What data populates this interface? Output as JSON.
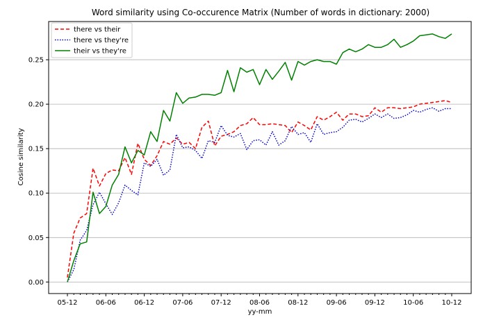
{
  "chart_data": {
    "type": "line",
    "title": "Word similarity using Co-occurence Matrix (Number of words in dictionary: 2000)",
    "xlabel": "yy-mm",
    "ylabel": "Cosine similarity",
    "ylim": [
      -0.013,
      0.293
    ],
    "y_ticks": [
      "0.00",
      "0.05",
      "0.10",
      "0.15",
      "0.20",
      "0.25"
    ],
    "y_tick_values": [
      0.0,
      0.05,
      0.1,
      0.15,
      0.2,
      0.25
    ],
    "x_ticks": [
      "05-12",
      "06-06",
      "06-12",
      "07-06",
      "07-12",
      "08-06",
      "08-12",
      "09-06",
      "09-12",
      "10-06",
      "10-12"
    ],
    "grid": "horizontal",
    "legend_position": "top-left",
    "series": [
      {
        "name": "there vs their",
        "color": "#ff0000",
        "style": "dashed",
        "values": [
          0.005,
          0.055,
          0.072,
          0.077,
          0.128,
          0.108,
          0.122,
          0.126,
          0.125,
          0.14,
          0.121,
          0.156,
          0.138,
          0.131,
          0.142,
          0.158,
          0.155,
          0.162,
          0.155,
          0.157,
          0.15,
          0.174,
          0.181,
          0.153,
          0.164,
          0.166,
          0.169,
          0.176,
          0.178,
          0.185,
          0.177,
          0.177,
          0.178,
          0.177,
          0.176,
          0.168,
          0.18,
          0.176,
          0.171,
          0.186,
          0.182,
          0.186,
          0.191,
          0.182,
          0.189,
          0.189,
          0.186,
          0.187,
          0.196,
          0.191,
          0.196,
          0.196,
          0.195,
          0.196,
          0.197,
          0.2,
          0.201,
          0.202,
          0.203,
          0.204,
          0.202
        ]
      },
      {
        "name": "there vs they're",
        "color": "#0000cc",
        "style": "dotted",
        "values": [
          0.0,
          0.014,
          0.047,
          0.058,
          0.087,
          0.101,
          0.088,
          0.076,
          0.089,
          0.109,
          0.103,
          0.098,
          0.134,
          0.13,
          0.138,
          0.12,
          0.126,
          0.166,
          0.151,
          0.152,
          0.148,
          0.139,
          0.159,
          0.157,
          0.176,
          0.165,
          0.163,
          0.167,
          0.149,
          0.159,
          0.16,
          0.154,
          0.169,
          0.154,
          0.159,
          0.175,
          0.166,
          0.168,
          0.157,
          0.178,
          0.166,
          0.168,
          0.169,
          0.174,
          0.182,
          0.183,
          0.18,
          0.184,
          0.189,
          0.185,
          0.189,
          0.184,
          0.185,
          0.188,
          0.193,
          0.191,
          0.194,
          0.196,
          0.192,
          0.195,
          0.195
        ]
      },
      {
        "name": "their vs they're",
        "color": "#008000",
        "style": "solid",
        "values": [
          0.0,
          0.024,
          0.043,
          0.045,
          0.101,
          0.077,
          0.085,
          0.109,
          0.121,
          0.152,
          0.134,
          0.148,
          0.143,
          0.169,
          0.158,
          0.193,
          0.181,
          0.213,
          0.201,
          0.207,
          0.208,
          0.211,
          0.211,
          0.21,
          0.213,
          0.238,
          0.214,
          0.241,
          0.236,
          0.239,
          0.222,
          0.239,
          0.228,
          0.237,
          0.247,
          0.227,
          0.248,
          0.244,
          0.248,
          0.25,
          0.248,
          0.248,
          0.245,
          0.258,
          0.262,
          0.259,
          0.262,
          0.267,
          0.264,
          0.264,
          0.267,
          0.273,
          0.264,
          0.267,
          0.271,
          0.277,
          0.278,
          0.279,
          0.276,
          0.274,
          0.279
        ]
      }
    ]
  }
}
